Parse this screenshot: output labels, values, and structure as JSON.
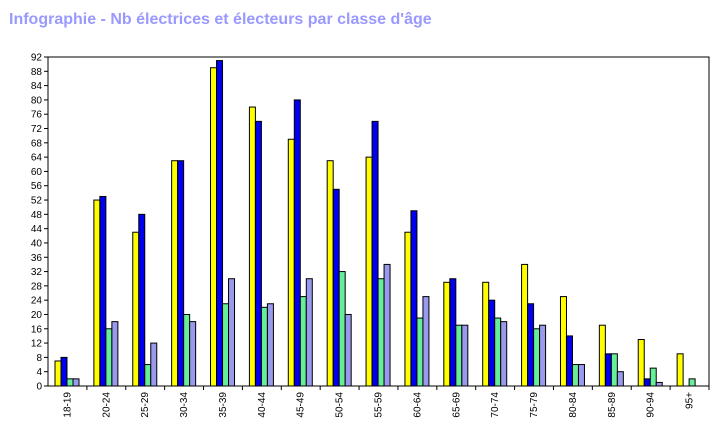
{
  "chart_data": {
    "type": "bar",
    "title": "Infographie - Nb électrices et électeurs par classe d'âge",
    "categories": [
      "18-19",
      "20-24",
      "25-29",
      "30-34",
      "35-39",
      "40-44",
      "45-49",
      "50-54",
      "55-59",
      "60-64",
      "65-69",
      "70-74",
      "75-79",
      "80-84",
      "85-89",
      "90-94",
      "95+"
    ],
    "series": [
      {
        "color": "#ffff00",
        "values": [
          7,
          52,
          43,
          63,
          89,
          78,
          69,
          63,
          64,
          43,
          29,
          29,
          34,
          25,
          17,
          13,
          9
        ]
      },
      {
        "color": "#0000ee",
        "values": [
          8,
          53,
          48,
          63,
          91,
          74,
          80,
          55,
          74,
          49,
          30,
          24,
          23,
          14,
          9,
          2,
          0
        ]
      },
      {
        "color": "#66ee99",
        "values": [
          2,
          16,
          6,
          20,
          23,
          22,
          25,
          32,
          30,
          19,
          17,
          19,
          16,
          6,
          9,
          5,
          2
        ]
      },
      {
        "color": "#9999ee",
        "values": [
          2,
          18,
          12,
          18,
          30,
          23,
          30,
          20,
          34,
          25,
          17,
          18,
          17,
          6,
          4,
          1,
          0
        ]
      }
    ],
    "ylim": [
      0,
      92
    ],
    "yticks": [
      0,
      4,
      8,
      12,
      16,
      20,
      24,
      28,
      32,
      36,
      40,
      44,
      48,
      52,
      56,
      60,
      64,
      68,
      72,
      76,
      80,
      84,
      88,
      92
    ],
    "grid": false,
    "legend": "none"
  }
}
